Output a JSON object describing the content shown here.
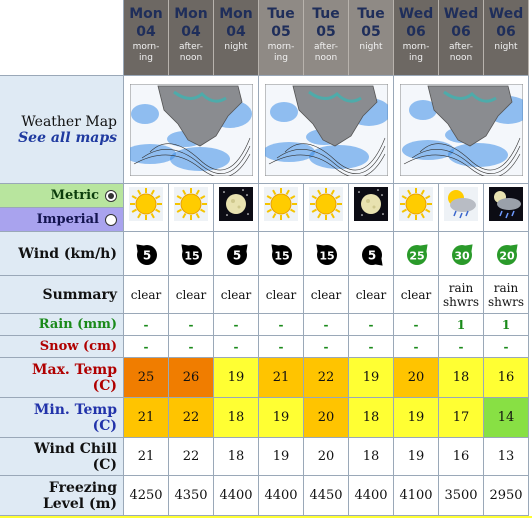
{
  "columns": [
    {
      "day": "Mon",
      "num": "04",
      "tod": "morn-\ning",
      "dark": true
    },
    {
      "day": "Mon",
      "num": "04",
      "tod": "after-\nnoon",
      "dark": true
    },
    {
      "day": "Mon",
      "num": "04",
      "tod": "night",
      "dark": true
    },
    {
      "day": "Tue",
      "num": "05",
      "tod": "morn-\ning",
      "dark": false
    },
    {
      "day": "Tue",
      "num": "05",
      "tod": "after-\nnoon",
      "dark": false
    },
    {
      "day": "Tue",
      "num": "05",
      "tod": "night",
      "dark": false
    },
    {
      "day": "Wed",
      "num": "06",
      "tod": "morn-\ning",
      "dark": true
    },
    {
      "day": "Wed",
      "num": "06",
      "tod": "after-\nnoon",
      "dark": true
    },
    {
      "day": "Wed",
      "num": "06",
      "tod": "night",
      "dark": true
    }
  ],
  "labels": {
    "weather_map": "Weather Map",
    "see_all_maps": "See all maps",
    "metric": "Metric",
    "imperial": "Imperial",
    "wind": "Wind (km/h)",
    "summary": "Summary",
    "rain": "Rain (mm)",
    "snow": "Snow (cm)",
    "max_temp_1": "Max. Temp",
    "max_temp_2": "(C)",
    "min_temp_1": "Min. Temp",
    "min_temp_2": "(C)",
    "wind_chill_1": "Wind Chill",
    "wind_chill_2": "(C)",
    "freezing_1": "Freezing",
    "freezing_2": "Level (m)"
  },
  "icons": [
    "sun-icon",
    "sun-icon",
    "moon-icon",
    "sun-icon",
    "sun-icon",
    "moon-icon",
    "sun-icon",
    "rain-cloud-icon",
    "rain-night-icon"
  ],
  "wind": [
    {
      "speed": "5",
      "dir": "up-left",
      "color": "#000"
    },
    {
      "speed": "15",
      "dir": "up-left",
      "color": "#000"
    },
    {
      "speed": "5",
      "dir": "up-right",
      "color": "#000"
    },
    {
      "speed": "15",
      "dir": "up-left",
      "color": "#000"
    },
    {
      "speed": "15",
      "dir": "up-left",
      "color": "#000"
    },
    {
      "speed": "5",
      "dir": "down-right",
      "color": "#000"
    },
    {
      "speed": "25",
      "dir": "up-right",
      "color": "#2a9a2a"
    },
    {
      "speed": "30",
      "dir": "up-right",
      "color": "#2a9a2a"
    },
    {
      "speed": "20",
      "dir": "up-right",
      "color": "#2a9a2a"
    }
  ],
  "summary": [
    "clear",
    "clear",
    "clear",
    "clear",
    "clear",
    "clear",
    "clear",
    "rain\nshwrs",
    "rain\nshwrs"
  ],
  "rain": [
    "-",
    "-",
    "-",
    "-",
    "-",
    "-",
    "-",
    "1",
    "1"
  ],
  "snow": [
    "-",
    "-",
    "-",
    "-",
    "-",
    "-",
    "-",
    "-",
    "-"
  ],
  "max_temp": [
    {
      "v": "25",
      "c": "#f07d00"
    },
    {
      "v": "26",
      "c": "#f07d00"
    },
    {
      "v": "19",
      "c": "#ffff33"
    },
    {
      "v": "21",
      "c": "#ffc400"
    },
    {
      "v": "22",
      "c": "#ffc400"
    },
    {
      "v": "19",
      "c": "#ffff33"
    },
    {
      "v": "20",
      "c": "#ffc400"
    },
    {
      "v": "18",
      "c": "#ffff33"
    },
    {
      "v": "16",
      "c": "#ffff33"
    }
  ],
  "min_temp": [
    {
      "v": "21",
      "c": "#ffc400"
    },
    {
      "v": "22",
      "c": "#ffc400"
    },
    {
      "v": "18",
      "c": "#ffff33"
    },
    {
      "v": "19",
      "c": "#ffff33"
    },
    {
      "v": "20",
      "c": "#ffc400"
    },
    {
      "v": "18",
      "c": "#ffff33"
    },
    {
      "v": "19",
      "c": "#ffff33"
    },
    {
      "v": "17",
      "c": "#ffff33"
    },
    {
      "v": "14",
      "c": "#88e044"
    }
  ],
  "wind_chill": [
    "21",
    "22",
    "18",
    "19",
    "20",
    "18",
    "19",
    "16",
    "13"
  ],
  "freezing": [
    "4250",
    "4350",
    "4400",
    "4400",
    "4450",
    "4400",
    "4100",
    "3500",
    "2950"
  ],
  "colors": {
    "label_bg": "#dfeaf4",
    "metric_bg": "#b8e59e",
    "imperial_bg": "#a9a3ee",
    "rain_label": "#1a8a1a",
    "snow_label": "#b00000",
    "max_label": "#b00000",
    "min_label": "#2233aa"
  }
}
